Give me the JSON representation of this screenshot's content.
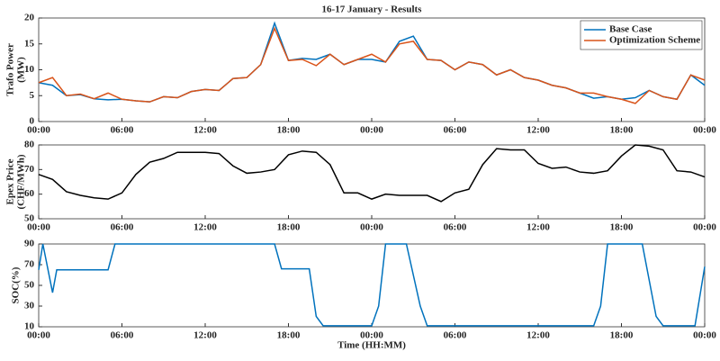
{
  "chart_data": [
    {
      "type": "line",
      "title": "16-17 January - Results",
      "ylabel": [
        "Trafo Power",
        "(MW)"
      ],
      "x": [
        0,
        1,
        2,
        3,
        4,
        5,
        6,
        7,
        8,
        9,
        10,
        11,
        12,
        13,
        14,
        15,
        16,
        17,
        18,
        19,
        20,
        21,
        22,
        23,
        24,
        25,
        26,
        27,
        28,
        29,
        30,
        31,
        32,
        33,
        34,
        35,
        36,
        37,
        38,
        39,
        40,
        41,
        42,
        43,
        44,
        45,
        46,
        47,
        48
      ],
      "series": [
        {
          "name": "Base Case",
          "color": "#0072bd",
          "values": [
            7.5,
            7.0,
            5.0,
            5.2,
            4.4,
            4.2,
            4.3,
            4.0,
            3.8,
            4.8,
            4.6,
            5.8,
            6.2,
            6.0,
            8.3,
            8.5,
            11.0,
            19.0,
            11.8,
            12.2,
            12.0,
            13.0,
            11.0,
            12.0,
            12.0,
            11.5,
            15.5,
            16.5,
            12.0,
            11.8,
            10.0,
            11.5,
            11.0,
            9.0,
            10.0,
            8.5,
            8.0,
            7.0,
            6.5,
            5.5,
            4.5,
            4.8,
            4.3,
            4.6,
            6.0,
            4.8,
            4.3,
            9.0,
            7.0
          ]
        },
        {
          "name": "Optimization Scheme",
          "color": "#d95319",
          "values": [
            7.5,
            8.5,
            5.0,
            5.3,
            4.4,
            5.5,
            4.3,
            4.0,
            3.8,
            4.8,
            4.6,
            5.8,
            6.2,
            6.0,
            8.3,
            8.5,
            11.0,
            18.0,
            11.8,
            12.0,
            10.8,
            13.0,
            11.0,
            12.0,
            13.0,
            11.5,
            15.0,
            15.5,
            12.0,
            11.8,
            10.0,
            11.5,
            11.0,
            9.0,
            10.0,
            8.5,
            8.0,
            7.0,
            6.5,
            5.5,
            5.5,
            4.8,
            4.3,
            3.5,
            6.0,
            4.8,
            4.3,
            9.0,
            8.0
          ]
        }
      ],
      "xlim": [
        0,
        48
      ],
      "xticks": [
        {
          "value": 0,
          "label": "00:00"
        },
        {
          "value": 6,
          "label": "06:00"
        },
        {
          "value": 12,
          "label": "12:00"
        },
        {
          "value": 18,
          "label": "18:00"
        },
        {
          "value": 24,
          "label": "00:00"
        },
        {
          "value": 30,
          "label": "06:00"
        },
        {
          "value": 36,
          "label": "12:00"
        },
        {
          "value": 42,
          "label": "18:00"
        },
        {
          "value": 48,
          "label": "00:00"
        }
      ],
      "ylim": [
        0,
        20
      ],
      "yticks": [
        0,
        5,
        10,
        15,
        20
      ],
      "legend": "upper right"
    },
    {
      "type": "line",
      "ylabel": [
        "Epex Price",
        "(CHF/MWh)"
      ],
      "x": [
        0,
        1,
        2,
        3,
        4,
        5,
        6,
        7,
        8,
        9,
        10,
        11,
        12,
        13,
        14,
        15,
        16,
        17,
        18,
        19,
        20,
        21,
        22,
        23,
        24,
        25,
        26,
        27,
        28,
        29,
        30,
        31,
        32,
        33,
        34,
        35,
        36,
        37,
        38,
        39,
        40,
        41,
        42,
        43,
        44,
        45,
        46,
        47,
        48
      ],
      "series": [
        {
          "color": "#000000",
          "values": [
            68,
            66,
            61,
            59.5,
            58.5,
            58,
            60.5,
            68,
            73,
            74.5,
            77,
            77,
            77,
            76.5,
            71.5,
            68.5,
            69,
            70,
            76,
            77.5,
            77,
            72,
            60.5,
            60.5,
            58,
            60,
            59.5,
            59.5,
            59.5,
            57,
            60.5,
            62,
            72,
            78.5,
            78,
            78,
            72.5,
            70.5,
            71,
            69,
            68.5,
            69.5,
            75.5,
            80,
            79.5,
            78,
            69.5,
            69,
            67
          ]
        }
      ],
      "xlim": [
        0,
        48
      ],
      "xticks": [
        {
          "value": 0,
          "label": "00:00"
        },
        {
          "value": 6,
          "label": "06:00"
        },
        {
          "value": 12,
          "label": "12:00"
        },
        {
          "value": 18,
          "label": "18:00"
        },
        {
          "value": 24,
          "label": "00:00"
        },
        {
          "value": 30,
          "label": "06:00"
        },
        {
          "value": 36,
          "label": "12:00"
        },
        {
          "value": 42,
          "label": "18:00"
        },
        {
          "value": 48,
          "label": "00:00"
        }
      ],
      "ylim": [
        50,
        80
      ],
      "yticks": [
        50,
        60,
        70,
        80
      ]
    },
    {
      "type": "line",
      "ylabel": [
        "SOC(%)"
      ],
      "xlabel": "Time (HH:MM)",
      "x": [
        0,
        0.3,
        1,
        1.3,
        5,
        5.5,
        17,
        17.5,
        19.5,
        20,
        20.5,
        24,
        24.5,
        25,
        26.5,
        27.5,
        28,
        40,
        40.5,
        41,
        43.5,
        44.5,
        45,
        47.3,
        48
      ],
      "series": [
        {
          "color": "#0072bd",
          "values": [
            65,
            90,
            43,
            65,
            65,
            90,
            90,
            66,
            66,
            20,
            11,
            11,
            30,
            90,
            90,
            30,
            11,
            11,
            30,
            90,
            90,
            20,
            11,
            11,
            68
          ]
        }
      ],
      "xlim": [
        0,
        48
      ],
      "xticks": [
        {
          "value": 0,
          "label": "00:00"
        },
        {
          "value": 6,
          "label": "06:00"
        },
        {
          "value": 12,
          "label": "12:00"
        },
        {
          "value": 18,
          "label": "18:00"
        },
        {
          "value": 24,
          "label": "00:00"
        },
        {
          "value": 30,
          "label": "06:00"
        },
        {
          "value": 36,
          "label": "12:00"
        },
        {
          "value": 42,
          "label": "18:00"
        },
        {
          "value": 48,
          "label": "00:00"
        }
      ],
      "ylim": [
        10,
        90
      ],
      "yticks": [
        10,
        30,
        50,
        70,
        90
      ]
    }
  ]
}
